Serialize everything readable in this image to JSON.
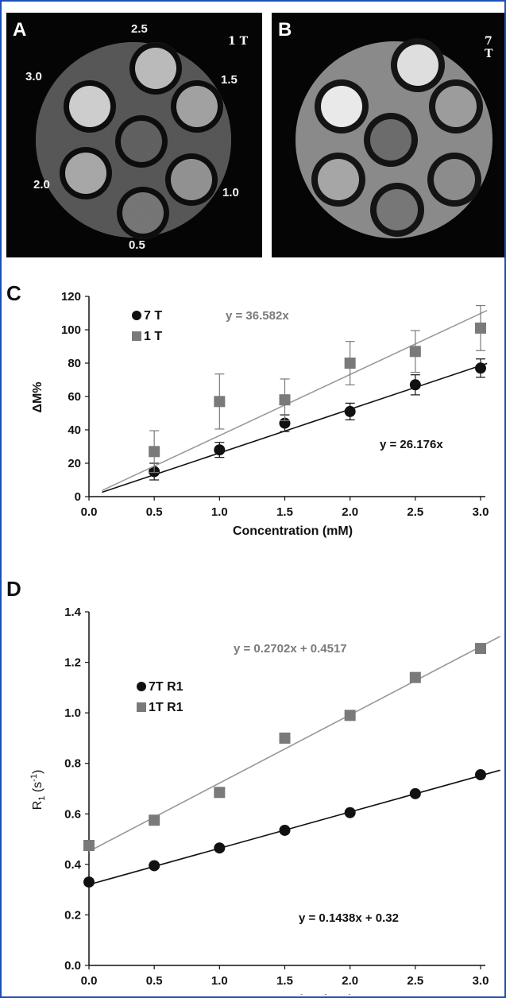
{
  "panel_a": {
    "label": "A",
    "field": "1 T",
    "tube_labels": [
      "2.5",
      "3.0",
      "1.5",
      "2.0",
      "1.0",
      "0.5"
    ]
  },
  "panel_b": {
    "label": "B",
    "field": "7 T"
  },
  "colors": {
    "series_7T": "#111111",
    "series_1T": "#7a7a7a",
    "frame": "#1f4fb4"
  },
  "chart_data": [
    {
      "panel": "C",
      "type": "scatter",
      "xlabel": "Concentration (mM)",
      "ylabel": "ΔM%",
      "xlim": [
        0,
        3.0
      ],
      "ylim": [
        0,
        120
      ],
      "xticks": [
        "0.0",
        "0.5",
        "1.0",
        "1.5",
        "2.0",
        "2.5",
        "3.0"
      ],
      "yticks": [
        "0",
        "20",
        "40",
        "60",
        "80",
        "100",
        "120"
      ],
      "legend_position": "top-left",
      "series": [
        {
          "name": "7 T",
          "marker": "circle",
          "color": "#111111",
          "x": [
            0.5,
            1.0,
            1.5,
            2.0,
            2.5,
            3.0
          ],
          "y": [
            15,
            28,
            44,
            51,
            67,
            77
          ],
          "err": [
            5,
            4.5,
            5,
            5,
            6,
            5.5
          ],
          "fit_slope": 26.176,
          "fit_intercept": 0,
          "fit_label": "y = 26.176x"
        },
        {
          "name": "1 T",
          "marker": "square",
          "color": "#7a7a7a",
          "x": [
            0.5,
            1.0,
            1.5,
            2.0,
            2.5,
            3.0
          ],
          "y": [
            27,
            57,
            58,
            80,
            87,
            101
          ],
          "err": [
            12.5,
            16.5,
            12.5,
            13,
            12.5,
            13.5
          ],
          "fit_slope": 36.582,
          "fit_intercept": 0,
          "fit_label": "y = 36.582x"
        }
      ]
    },
    {
      "panel": "D",
      "type": "scatter",
      "xlabel": "Concentration (mM)",
      "ylabel_main": "R",
      "ylabel_sub": "1",
      "ylabel_unit": " (s",
      "ylabel_sup": "-1",
      "ylabel_close": ")",
      "xlim": [
        0,
        3.0
      ],
      "ylim": [
        0,
        1.4
      ],
      "xticks": [
        "0.0",
        "0.5",
        "1.0",
        "1.5",
        "2.0",
        "2.5",
        "3.0"
      ],
      "yticks": [
        "0.0",
        "0.2",
        "0.4",
        "0.6",
        "0.8",
        "1.0",
        "1.2",
        "1.4"
      ],
      "legend_position": "top-left",
      "series": [
        {
          "name": "7T R1",
          "marker": "circle",
          "color": "#111111",
          "x": [
            0,
            0.5,
            1.0,
            1.5,
            2.0,
            2.5,
            3.0
          ],
          "y": [
            0.33,
            0.395,
            0.465,
            0.535,
            0.605,
            0.68,
            0.755
          ],
          "fit_slope": 0.1438,
          "fit_intercept": 0.32,
          "fit_label": "y = 0.1438x  + 0.32"
        },
        {
          "name": "1T R1",
          "marker": "square",
          "color": "#7a7a7a",
          "x": [
            0,
            0.5,
            1.0,
            1.5,
            2.0,
            2.5,
            3.0
          ],
          "y": [
            0.475,
            0.575,
            0.685,
            0.9,
            0.99,
            1.14,
            1.255
          ],
          "fit_slope": 0.2702,
          "fit_intercept": 0.4517,
          "fit_label": "y = 0.2702x  + 0.4517"
        }
      ]
    }
  ]
}
